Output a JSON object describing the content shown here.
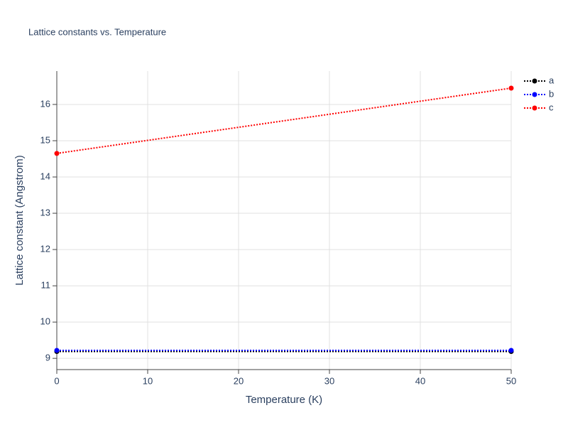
{
  "chart_data": {
    "type": "line",
    "title": "Lattice constants vs. Temperature",
    "xlabel": "Temperature (K)",
    "ylabel": "Lattice constant (Angstrom)",
    "x": [
      0,
      50
    ],
    "series": [
      {
        "name": "a",
        "color": "#000000",
        "values": [
          9.19,
          9.19
        ]
      },
      {
        "name": "b",
        "color": "#0000ff",
        "values": [
          9.22,
          9.22
        ]
      },
      {
        "name": "c",
        "color": "#ff0000",
        "values": [
          14.65,
          16.45
        ]
      }
    ],
    "xlim": [
      0,
      50
    ],
    "xticks": [
      0,
      10,
      20,
      30,
      40,
      50
    ],
    "ylim": [
      8.69,
      16.92
    ],
    "yticks": [
      9,
      10,
      11,
      12,
      13,
      14,
      15,
      16
    ],
    "grid": true,
    "legend": "top-right"
  }
}
